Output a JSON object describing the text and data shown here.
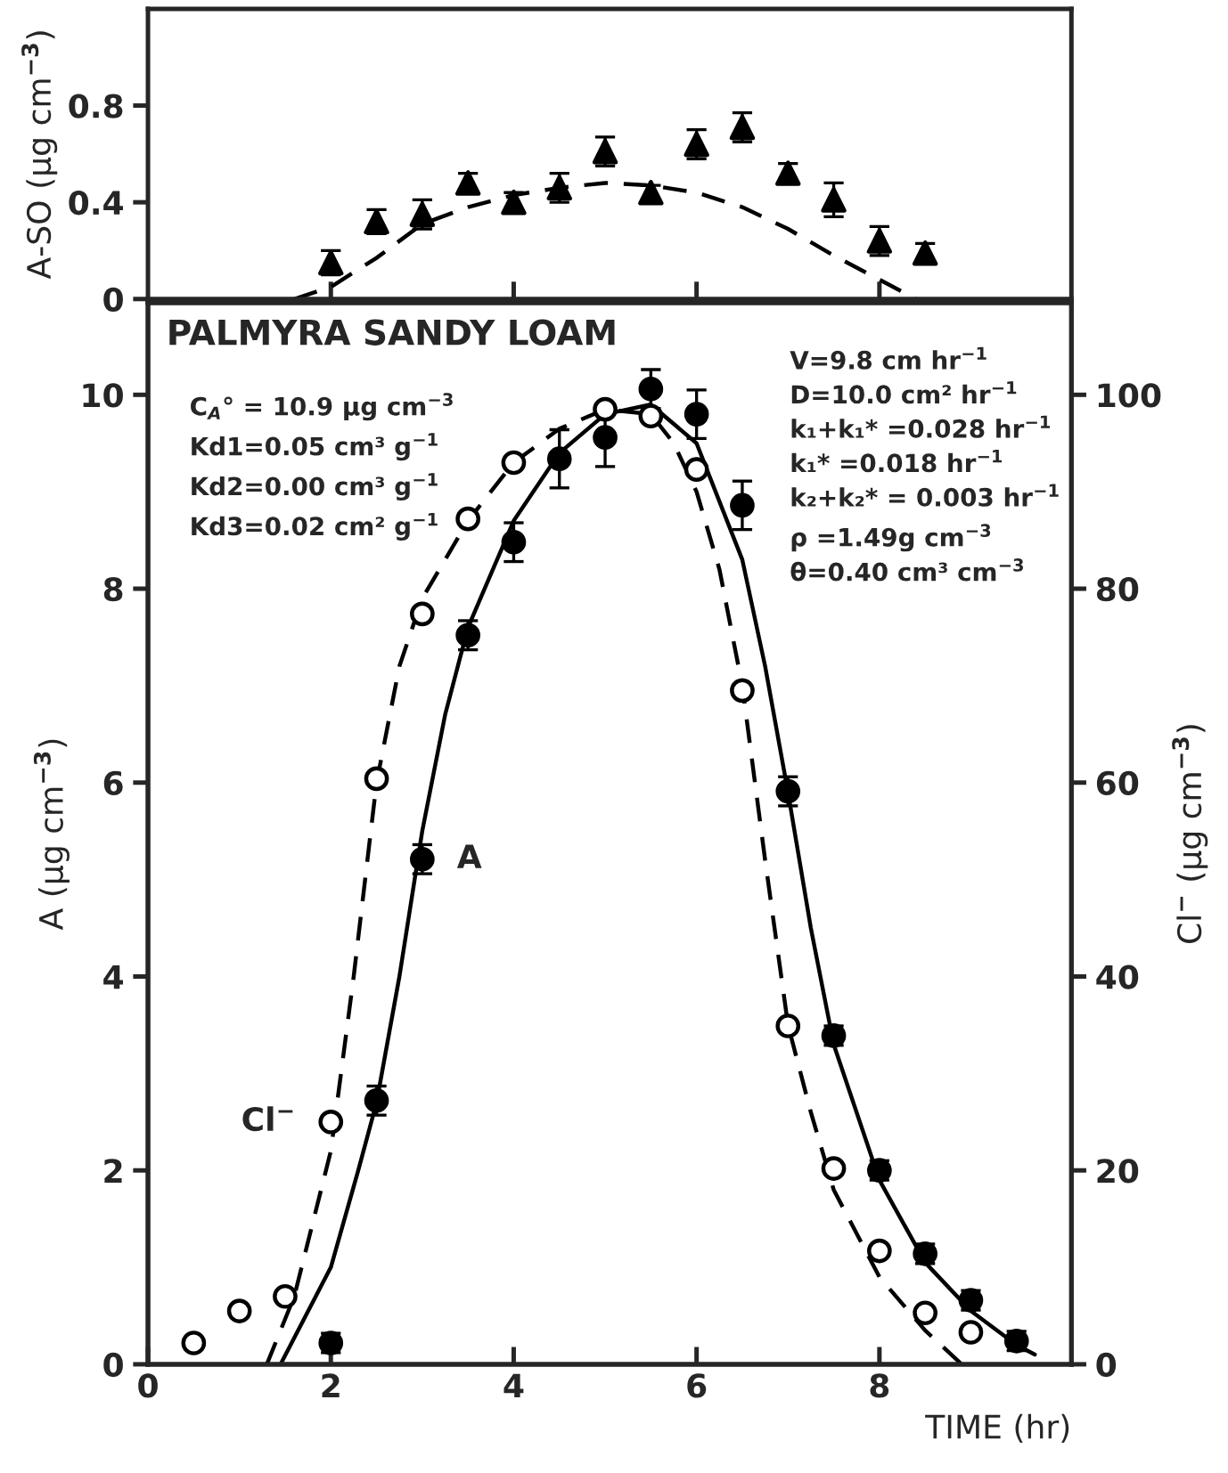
{
  "chart_data": [
    {
      "type": "scatter",
      "ylabel": "A-SO (µg cm$^{−3}$)",
      "xlim": [
        0,
        10.1
      ],
      "xticks": [
        {
          "value": 2,
          "label": null
        },
        {
          "value": 4,
          "label": null
        },
        {
          "value": 6,
          "label": null
        },
        {
          "value": 8,
          "label": null
        }
      ],
      "ylim": [
        0,
        1.2
      ],
      "yticks": [
        0,
        0.4,
        0.8
      ],
      "tick_labels": "y",
      "grid": false,
      "legend": false,
      "series": [
        {
          "type": "scatter",
          "marker": "triangle",
          "color": "#000000",
          "x": [
            2,
            2.5,
            3,
            3.5,
            4,
            4.5,
            5,
            5.5,
            6,
            6.5,
            7,
            7.5,
            8,
            8.5
          ],
          "values": [
            0.15,
            0.32,
            0.35,
            0.48,
            0.4,
            0.46,
            0.61,
            0.44,
            0.64,
            0.71,
            0.52,
            0.41,
            0.24,
            0.19
          ],
          "errors": [
            0.05,
            0.05,
            0.06,
            0.04,
            0.04,
            0.06,
            0.06,
            0.03,
            0.06,
            0.06,
            0.04,
            0.07,
            0.06,
            0.04
          ]
        },
        {
          "type": "line",
          "line_style": "dashed",
          "marker": "none",
          "color": "#000000",
          "x": [
            1.6,
            2,
            2.5,
            3,
            3.5,
            4,
            4.5,
            5,
            5.5,
            6,
            6.5,
            7,
            7.5,
            8,
            8.4
          ],
          "values": [
            0,
            0.05,
            0.17,
            0.31,
            0.38,
            0.43,
            0.46,
            0.48,
            0.47,
            0.44,
            0.38,
            0.29,
            0.18,
            0.08,
            0
          ]
        }
      ]
    },
    {
      "type": "scatter",
      "title": "PALMYRA SANDY LOAM",
      "xlabel": "TIME (hr)",
      "ylabel": "A (µg cm$^{−3}$)",
      "y2label": "Cl$^{−}$ (µg cm$^{−3}$)",
      "xlim": [
        0,
        10.1
      ],
      "xticks": [
        0,
        2,
        4,
        6,
        8
      ],
      "ylim": [
        0,
        10.95
      ],
      "yticks": [
        0,
        2,
        4,
        6,
        8,
        10
      ],
      "y2lim": [
        0,
        109.5
      ],
      "y2ticks": [
        0,
        20,
        40,
        60,
        80,
        100
      ],
      "grid": false,
      "legend": false,
      "annotations": [
        "C$_{A}$° = 10.9 µg cm$^{−3}$\nKd1=0.05 cm³ g$^{−1}$\nKd2=0.00 cm³ g$^{−1}$\nKd3=0.02 cm² g$^{−1}$",
        "V=9.8 cm hr$^{−1}$\nD=10.0 cm² hr$^{−1}$\nk₁+k₁* =0.028 hr$^{−1}$\nk₁* =0.018 hr$^{−1}$\nk₂+k₂* = 0.003 hr$^{−1}$\nρ =1.49g cm$^{−3}$\nθ=0.40 cm³ cm$^{−3}$",
        {
          "text": "A",
          "x": 3,
          "y": 5.21
        },
        {
          "text": "Cl$^{−}$",
          "x": 2,
          "y": 2.5
        }
      ],
      "series": [
        {
          "type": "scatter",
          "marker": "circle",
          "color": "#000000",
          "x": [
            2,
            2.5,
            3,
            3.5,
            4,
            4.5,
            5,
            5.5,
            6,
            6.5,
            7,
            7.5,
            8,
            8.5,
            9,
            9.5
          ],
          "values": [
            0.22,
            2.72,
            5.21,
            7.52,
            8.48,
            9.34,
            9.56,
            10.06,
            9.8,
            8.86,
            5.91,
            3.39,
            2.0,
            1.14,
            0.66,
            0.24
          ],
          "errors": [
            0.1,
            0.15,
            0.15,
            0.15,
            0.2,
            0.3,
            0.3,
            0.2,
            0.25,
            0.25,
            0.15,
            0.1,
            0.1,
            0.1,
            0.1,
            0.1
          ]
        },
        {
          "type": "scatter",
          "marker": "circle",
          "axis": "y2",
          "color": "#000000",
          "x": [
            0.5,
            1,
            1.5,
            2,
            2.5,
            3,
            3.5,
            4,
            5,
            5.5,
            6,
            6.5,
            7,
            7.5,
            8,
            8.5,
            9
          ],
          "values": [
            2.2,
            5.5,
            7.0,
            25,
            60.4,
            77.4,
            87.2,
            93,
            98.5,
            97.8,
            92.3,
            69.5,
            34.9,
            20.2,
            11.7,
            5.3,
            3.3
          ]
        },
        {
          "type": "line",
          "line_style": "solid",
          "marker": "none",
          "color": "#000000",
          "x": [
            1.45,
            2,
            2.3,
            2.5,
            2.75,
            3,
            3.25,
            3.5,
            4,
            4.5,
            5,
            5.5,
            6,
            6.5,
            6.75,
            7,
            7.25,
            7.5,
            8,
            8.5,
            9,
            9.5,
            9.7
          ],
          "values": [
            0,
            1.0,
            2.0,
            2.7,
            4.0,
            5.5,
            6.7,
            7.6,
            8.7,
            9.4,
            9.8,
            9.9,
            9.5,
            8.3,
            7.2,
            5.9,
            4.5,
            3.3,
            1.9,
            1.05,
            0.55,
            0.2,
            0.1
          ]
        },
        {
          "type": "line",
          "line_style": "dashed",
          "marker": "none",
          "axis": "y2",
          "color": "#000000",
          "x": [
            1.3,
            1.6,
            2,
            2.25,
            2.5,
            2.75,
            3,
            3.5,
            4,
            4.5,
            5,
            5.5,
            5.75,
            6,
            6.25,
            6.5,
            6.75,
            7,
            7.25,
            7.5,
            8,
            8.5,
            8.9
          ],
          "values": [
            0,
            7,
            22,
            40,
            60,
            72,
            79,
            87,
            93,
            96.5,
            98.5,
            98,
            95,
            90,
            82,
            70,
            52,
            35,
            26,
            18,
            9,
            3.5,
            0
          ]
        }
      ]
    }
  ]
}
